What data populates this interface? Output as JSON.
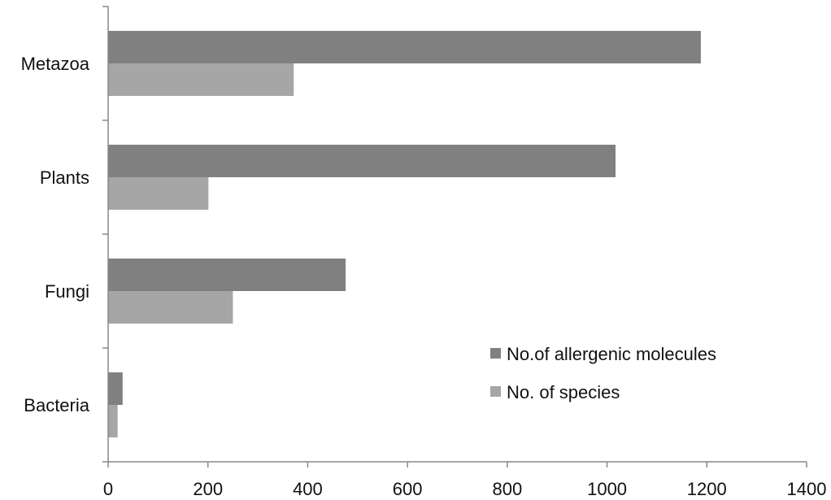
{
  "chart_data": {
    "type": "bar",
    "orientation": "horizontal",
    "categories": [
      "Metazoa",
      "Plants",
      "Fungi",
      "Bacteria"
    ],
    "series": [
      {
        "name": "No.of allergenic molecules",
        "values": [
          1188,
          1017,
          476,
          29
        ],
        "color": "#808080"
      },
      {
        "name": "No. of species",
        "values": [
          372,
          201,
          250,
          19
        ],
        "color": "#a6a6a6"
      }
    ],
    "xlim": [
      0,
      1400
    ],
    "xticks": [
      0,
      200,
      400,
      600,
      800,
      1000,
      1200,
      1400
    ],
    "title": "",
    "xlabel": "",
    "ylabel": "",
    "legend_position": "bottom-right",
    "grid": false
  }
}
